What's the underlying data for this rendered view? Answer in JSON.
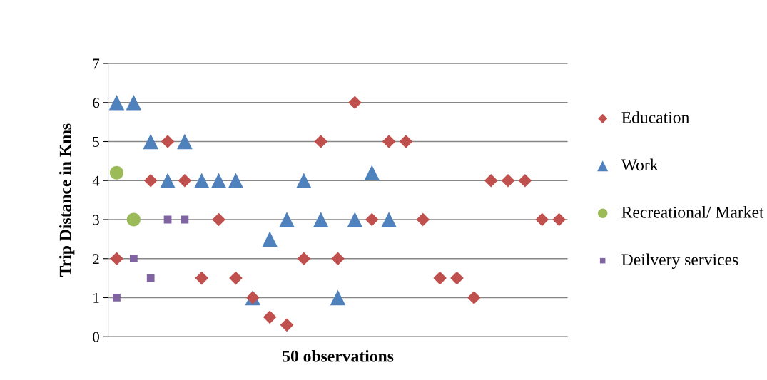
{
  "chart_data": {
    "type": "scatter",
    "xlabel": "50 observations",
    "ylabel": "Trip Distance in Kms",
    "categories": [
      null,
      null,
      null,
      null,
      null,
      null,
      null,
      null,
      null,
      null,
      null,
      null,
      null,
      null,
      null,
      null,
      null,
      null,
      null,
      null,
      null,
      null,
      null,
      null,
      null,
      null,
      null
    ],
    "series": [
      {
        "name": "Education",
        "color": "#c0504d",
        "marker": "diamond",
        "values": [
          2,
          null,
          4,
          5,
          4,
          1.5,
          3,
          1.5,
          1,
          0.5,
          0.3,
          2,
          5,
          2,
          6,
          3,
          5,
          5,
          3,
          1.5,
          1.5,
          1,
          4,
          4,
          4,
          3,
          3
        ]
      },
      {
        "name": "Work",
        "color": "#4f81bd",
        "marker": "triangle",
        "values": [
          6,
          6,
          5,
          4,
          5,
          4,
          4,
          4,
          1,
          2.5,
          3,
          4,
          3,
          1,
          3,
          4.2,
          3,
          null,
          null,
          null,
          null,
          null,
          null,
          null,
          null,
          null,
          null
        ]
      },
      {
        "name": "Recreational/ Market",
        "color": "#9bbb59",
        "marker": "circle",
        "values": [
          4.2,
          3,
          null,
          null,
          null,
          null,
          null,
          null,
          null,
          null,
          null,
          null,
          null,
          null,
          null,
          null,
          null,
          null,
          null,
          null,
          null,
          null,
          null,
          null,
          null,
          null,
          null
        ]
      },
      {
        "name": "Deilvery services",
        "color": "#8064a2",
        "marker": "square",
        "values": [
          1,
          2,
          1.5,
          3,
          3,
          null,
          null,
          null,
          null,
          null,
          null,
          null,
          null,
          null,
          null,
          null,
          null,
          null,
          null,
          null,
          null,
          null,
          null,
          null,
          null,
          null,
          null
        ]
      }
    ],
    "ylim": [
      0,
      7
    ],
    "yticks": [
      0,
      1,
      2,
      3,
      4,
      5,
      6,
      7
    ],
    "grid": "y",
    "legend": "right"
  }
}
